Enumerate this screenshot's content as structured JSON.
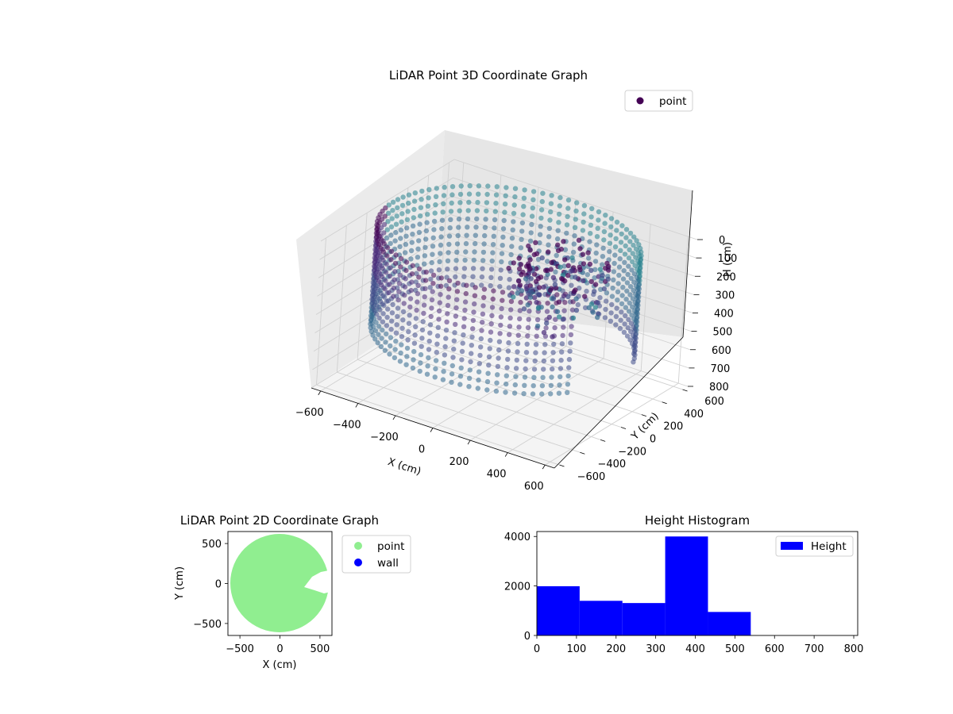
{
  "chart_data": [
    {
      "type": "scatter",
      "title": "LiDAR Point 3D Coordinate Graph",
      "xlabel": "X (cm)",
      "ylabel": "Y (cm)",
      "zlabel": "H (cm)",
      "xlim": [
        -650,
        650
      ],
      "ylim": [
        -650,
        650
      ],
      "zlim": [
        0,
        800
      ],
      "z_inverted": true,
      "x_ticks": [
        "−600",
        "−400",
        "−200",
        "0",
        "200",
        "400",
        "600"
      ],
      "y_ticks": [
        "−600",
        "−400",
        "−200",
        "0",
        "200",
        "400",
        "600"
      ],
      "z_ticks": [
        "0",
        "100",
        "200",
        "300",
        "400",
        "500",
        "600",
        "700",
        "800"
      ],
      "legend": [
        {
          "label": "point",
          "color": "#440154"
        }
      ],
      "legend_position": "top-right",
      "colormap": "viridis",
      "grid": true,
      "point_cloud": {
        "ring_radius": 620,
        "height_range": [
          0,
          550
        ],
        "colormap": "viridis"
      }
    },
    {
      "type": "scatter",
      "title": "LiDAR Point 2D Coordinate Graph",
      "xlabel": "X (cm)",
      "ylabel": "Y (cm)",
      "xlim": [
        -650,
        650
      ],
      "ylim": [
        -650,
        650
      ],
      "x_ticks": [
        "−500",
        "0",
        "500"
      ],
      "y_ticks": [
        "−500",
        "0",
        "500"
      ],
      "legend": [
        {
          "label": "point",
          "color": "#90ee90"
        },
        {
          "label": "wall",
          "color": "#0000ff"
        }
      ],
      "legend_position": "outside-right",
      "disk": {
        "radius": 620,
        "color": "#90ee90"
      }
    },
    {
      "type": "bar",
      "title": "Height Histogram",
      "legend": [
        {
          "label": "Height",
          "color": "#0000ff"
        }
      ],
      "legend_position": "top-right",
      "xlim": [
        0,
        810
      ],
      "ylim": [
        0,
        4200
      ],
      "x_ticks": [
        "0",
        "100",
        "200",
        "300",
        "400",
        "500",
        "600",
        "700",
        "800"
      ],
      "y_ticks": [
        "0",
        "2000",
        "4000"
      ],
      "bins": [
        {
          "from": 0,
          "to": 108,
          "count": 1990
        },
        {
          "from": 108,
          "to": 216,
          "count": 1400
        },
        {
          "from": 216,
          "to": 324,
          "count": 1310
        },
        {
          "from": 324,
          "to": 432,
          "count": 4000
        },
        {
          "from": 432,
          "to": 540,
          "count": 950
        },
        {
          "from": 540,
          "to": 648,
          "count": 0
        },
        {
          "from": 648,
          "to": 756,
          "count": 0
        },
        {
          "from": 756,
          "to": 810,
          "count": 0
        }
      ],
      "color": "#0000ff"
    }
  ]
}
